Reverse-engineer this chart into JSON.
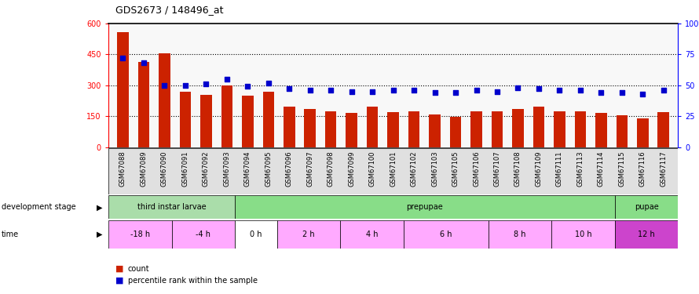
{
  "title": "GDS2673 / 148496_at",
  "samples": [
    "GSM67088",
    "GSM67089",
    "GSM67090",
    "GSM67091",
    "GSM67092",
    "GSM67093",
    "GSM67094",
    "GSM67095",
    "GSM67096",
    "GSM67097",
    "GSM67098",
    "GSM67099",
    "GSM67100",
    "GSM67101",
    "GSM67102",
    "GSM67103",
    "GSM67105",
    "GSM67106",
    "GSM67107",
    "GSM67108",
    "GSM67109",
    "GSM67111",
    "GSM67113",
    "GSM67114",
    "GSM67115",
    "GSM67116",
    "GSM67117"
  ],
  "counts": [
    560,
    415,
    455,
    270,
    255,
    300,
    250,
    270,
    195,
    185,
    175,
    165,
    195,
    170,
    175,
    160,
    145,
    175,
    175,
    185,
    195,
    175,
    175,
    165,
    155,
    140,
    170
  ],
  "percentiles": [
    72,
    68,
    50,
    50,
    51,
    55,
    49,
    52,
    47,
    46,
    46,
    45,
    45,
    46,
    46,
    44,
    44,
    46,
    45,
    48,
    47,
    46,
    46,
    44,
    44,
    43,
    46
  ],
  "ylim_left": [
    0,
    600
  ],
  "ylim_right": [
    0,
    100
  ],
  "yticks_left": [
    0,
    150,
    300,
    450,
    600
  ],
  "yticks_right": [
    0,
    25,
    50,
    75,
    100
  ],
  "bar_color": "#cc2200",
  "dot_color": "#0000cc",
  "dev_stages": [
    {
      "label": "third instar larvae",
      "start": 0,
      "end": 6,
      "color": "#aaddaa"
    },
    {
      "label": "prepupae",
      "start": 6,
      "end": 24,
      "color": "#88dd88"
    },
    {
      "label": "pupae",
      "start": 24,
      "end": 27,
      "color": "#88dd88"
    }
  ],
  "time_rows": [
    {
      "label": "-18 h",
      "start": 0,
      "end": 3,
      "color": "#ffaaff"
    },
    {
      "label": "-4 h",
      "start": 3,
      "end": 6,
      "color": "#ffaaff"
    },
    {
      "label": "0 h",
      "start": 6,
      "end": 8,
      "color": "#ffffff"
    },
    {
      "label": "2 h",
      "start": 8,
      "end": 11,
      "color": "#ffaaff"
    },
    {
      "label": "4 h",
      "start": 11,
      "end": 14,
      "color": "#ffaaff"
    },
    {
      "label": "6 h",
      "start": 14,
      "end": 18,
      "color": "#ffaaff"
    },
    {
      "label": "8 h",
      "start": 18,
      "end": 21,
      "color": "#ffaaff"
    },
    {
      "label": "10 h",
      "start": 21,
      "end": 24,
      "color": "#ffaaff"
    },
    {
      "label": "12 h",
      "start": 24,
      "end": 27,
      "color": "#cc44cc"
    }
  ]
}
